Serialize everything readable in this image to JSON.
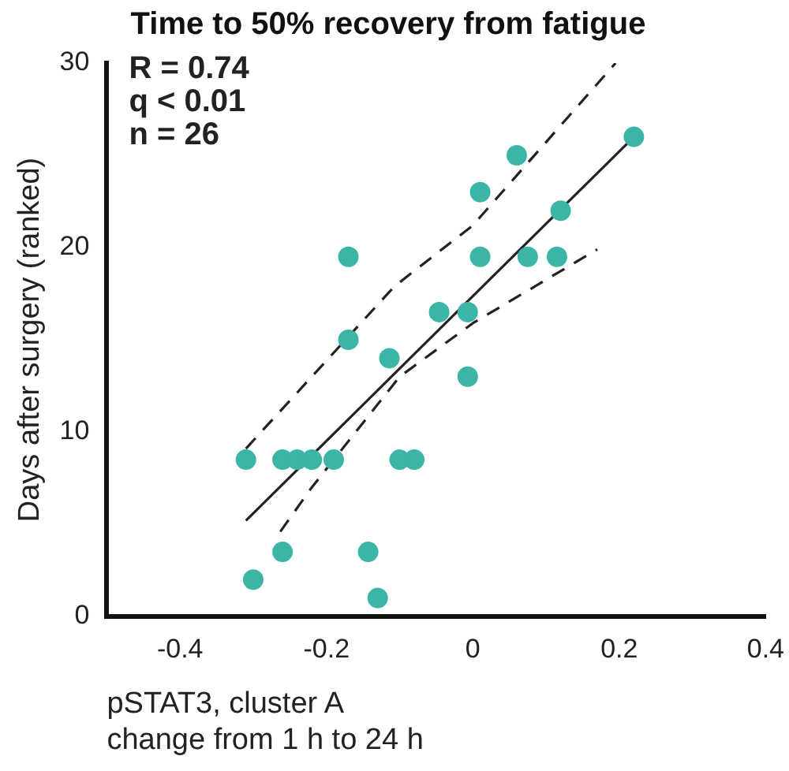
{
  "chart_data": {
    "type": "scatter",
    "title": "Time to 50% recovery from fatigue",
    "xlabel": "pSTAT3, cluster A\nchange from 1 h to 24 h",
    "ylabel": "Days after surgery (ranked)",
    "annotations": [
      "R = 0.74",
      "q < 0.01",
      "n = 26"
    ],
    "xlim": [
      -0.5,
      0.4
    ],
    "xticks": [
      -0.4,
      -0.2,
      0,
      0.2,
      0.4
    ],
    "ylim": [
      0,
      30
    ],
    "yticks": [
      0,
      10,
      20,
      30
    ],
    "grid": false,
    "legend": false,
    "series": [
      {
        "type": "scatter",
        "color": "#3ab5a6",
        "marker": "circle",
        "x": [
          0.22,
          0.06,
          0.01,
          0.12,
          -0.17,
          0.01,
          0.075,
          0.115,
          -0.046,
          -0.007,
          -0.17,
          -0.114,
          -0.007,
          -0.31,
          -0.26,
          -0.24,
          -0.22,
          -0.19,
          -0.1,
          -0.08,
          -0.26,
          -0.143,
          -0.3,
          -0.13
        ],
        "values": [
          26,
          25,
          23,
          22,
          19.5,
          19.5,
          19.5,
          19.5,
          16.5,
          16.5,
          15,
          14,
          13,
          8.5,
          8.5,
          8.5,
          8.5,
          8.5,
          8.5,
          8.5,
          3.5,
          3.5,
          2,
          1
        ]
      },
      {
        "type": "line",
        "color": "#222222",
        "marker": "none",
        "line_style": "solid",
        "x": [
          -0.31,
          0.215
        ],
        "values": [
          5.2,
          25.8
        ]
      },
      {
        "type": "line",
        "color": "#222222",
        "marker": "none",
        "line_style": "dashed",
        "x": [
          -0.31,
          -0.107,
          0,
          0.195
        ],
        "values": [
          9.1,
          17.9,
          21.2,
          30
        ]
      },
      {
        "type": "line",
        "color": "#222222",
        "marker": "none",
        "line_style": "dashed",
        "x": [
          -0.263,
          -0.22,
          -0.1,
          0,
          0.17
        ],
        "values": [
          4.6,
          7.0,
          13.0,
          15.9,
          19.9
        ]
      }
    ]
  }
}
